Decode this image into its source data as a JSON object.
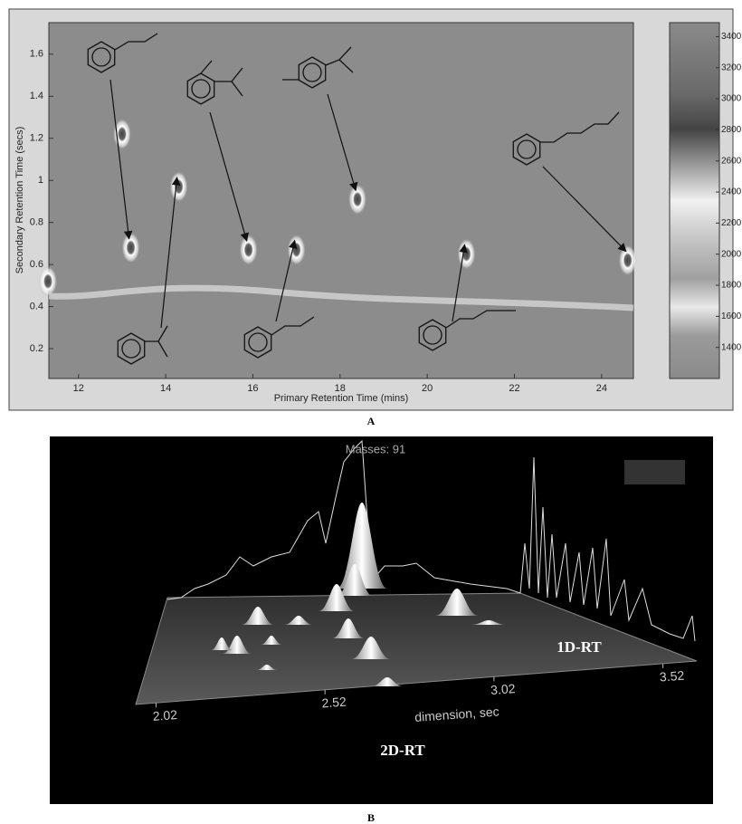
{
  "chart_data": [
    {
      "type": "heatmap",
      "panel_label": "A",
      "x_label": "Primary Retention Time (mins)",
      "y_label": "Secondary Retention Time (secs)",
      "xlim": [
        11.32,
        24.73
      ],
      "ylim": [
        0.058,
        1.75
      ],
      "xticks": [
        12,
        14,
        16,
        18,
        20,
        22,
        24
      ],
      "yticks": [
        0.2,
        0.4,
        0.6,
        0.8,
        1,
        1.2,
        1.4,
        1.6
      ],
      "x": [
        11.3,
        13.2,
        13.0,
        14.3,
        15.9,
        17.0,
        18.4,
        20.9,
        24.6
      ],
      "values": [
        0.52,
        0.68,
        1.22,
        0.97,
        0.67,
        0.67,
        0.91,
        0.65,
        0.62
      ],
      "colorbar_lim": [
        1200,
        3490
      ],
      "colorbar_ticks": [
        1400,
        1600,
        1800,
        2000,
        2200,
        2400,
        2600,
        2800,
        3000,
        3200,
        3400
      ]
    },
    {
      "type": "surface3d",
      "panel_label": "B",
      "title": "Masses: 91",
      "x_label": "dimension, sec",
      "xlim": [
        1.96,
        3.62
      ],
      "xticks": [
        2.02,
        2.52,
        3.02,
        3.52
      ],
      "annotations": [
        "1D-RT",
        "2D-RT"
      ]
    }
  ]
}
